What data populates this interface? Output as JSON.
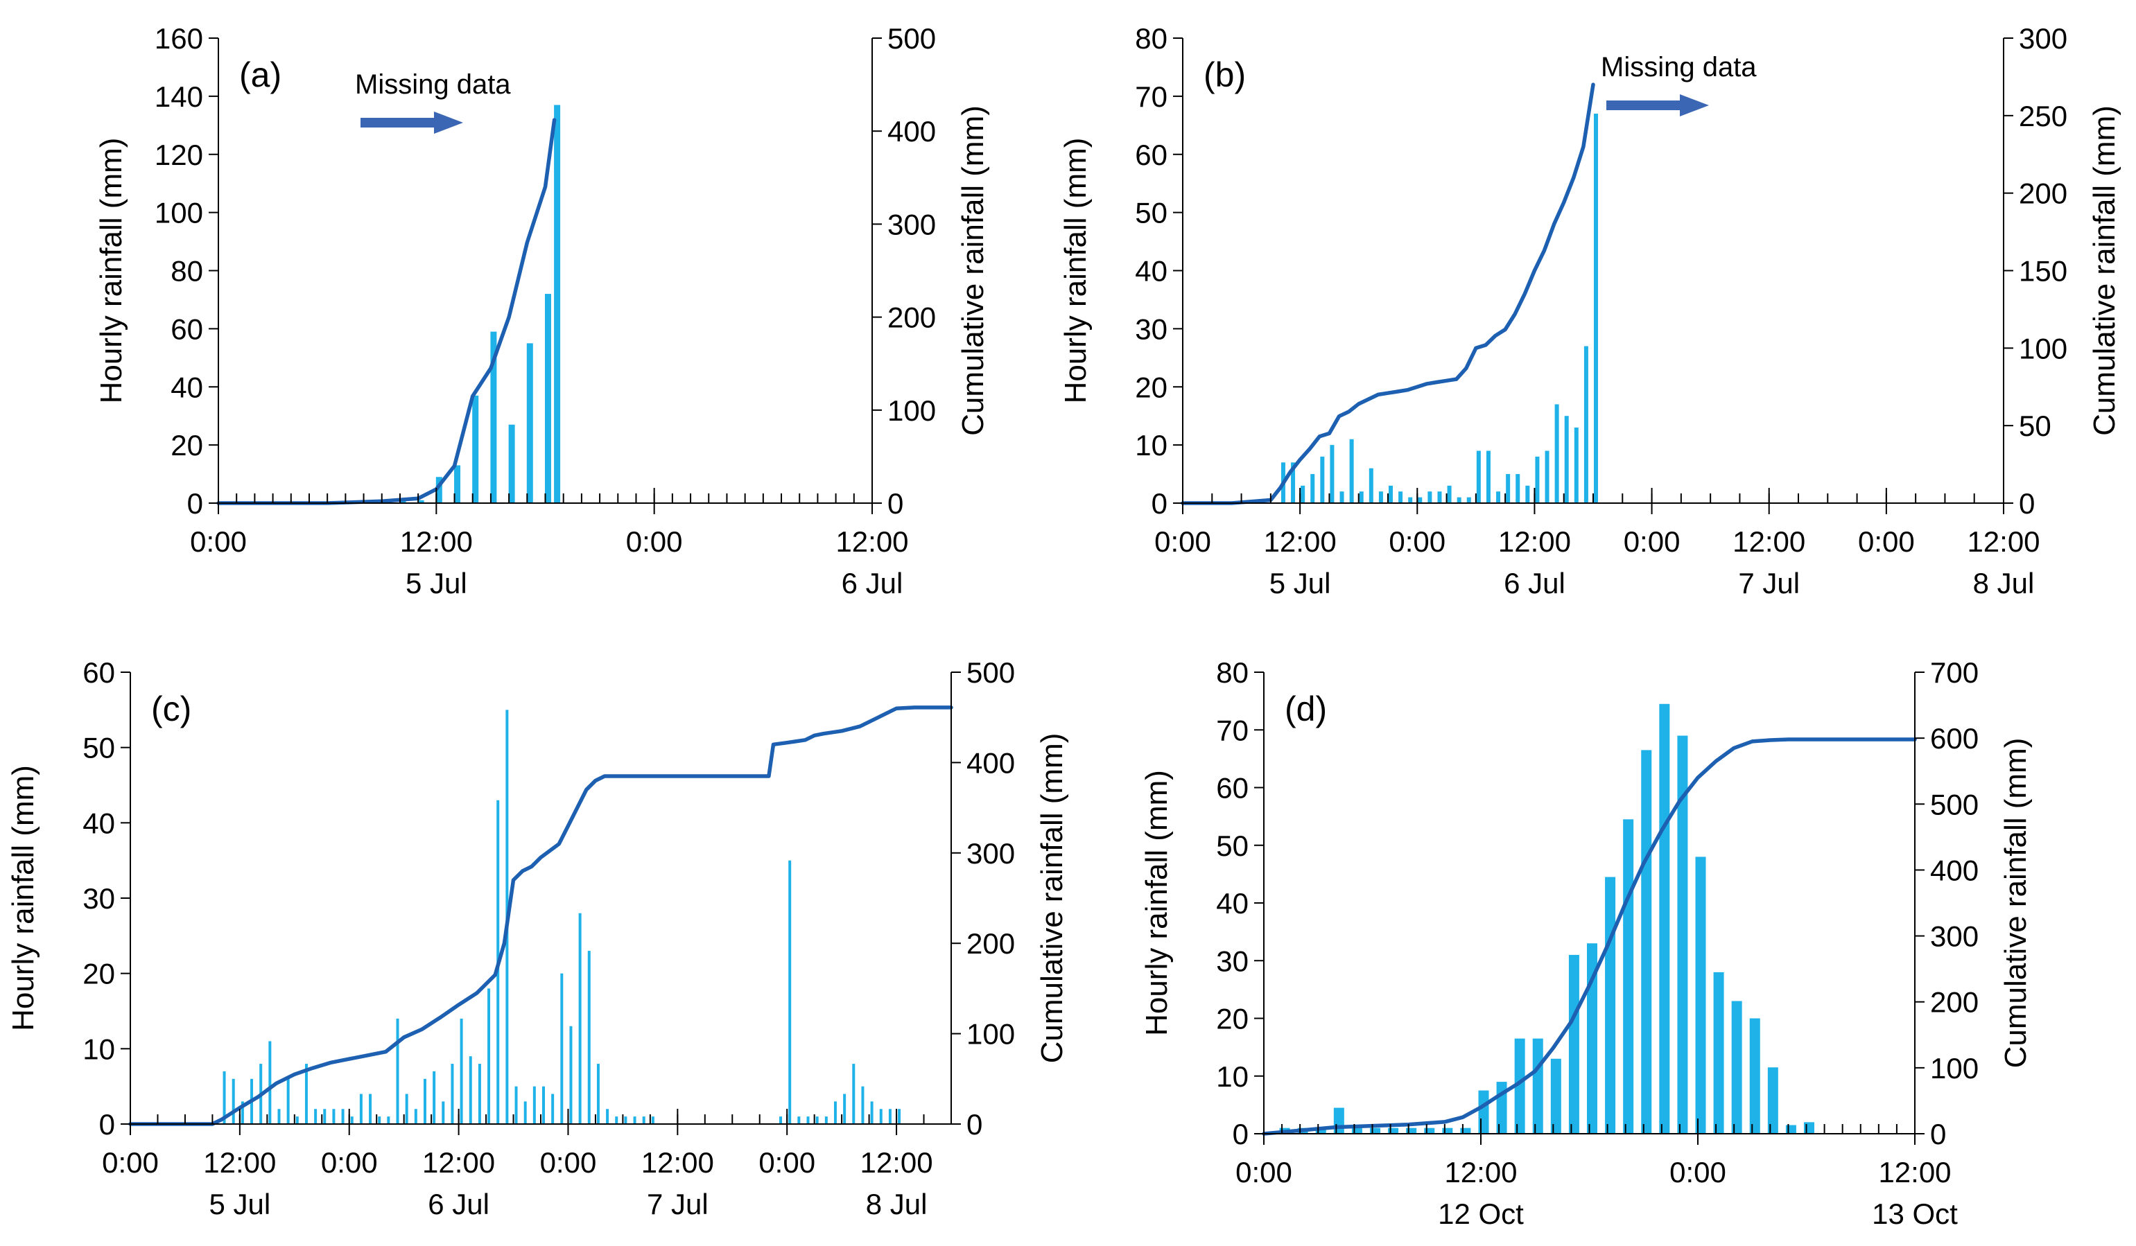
{
  "colors": {
    "bar": "#1FB2E8",
    "line": "#1D5FB0",
    "arrow": "#3B66B4",
    "axis": "#000000"
  },
  "chart_data": [
    {
      "id": "a",
      "panel_label": "(a)",
      "type": "bar+line",
      "ylabel": "Hourly rainfall (mm)",
      "y2label": "Cumulative rainfall (mm)",
      "xlim": [
        0,
        36
      ],
      "ylim": [
        0,
        160
      ],
      "y2lim": [
        0,
        500
      ],
      "yticks": [
        0,
        20,
        40,
        60,
        80,
        100,
        120,
        140,
        160
      ],
      "y2ticks": [
        0,
        100,
        200,
        300,
        400,
        500
      ],
      "xticks": [
        {
          "x": 0,
          "label": "0:00",
          "date": ""
        },
        {
          "x": 12,
          "label": "12:00",
          "date": "5 Jul"
        },
        {
          "x": 24,
          "label": "0:00",
          "date": ""
        },
        {
          "x": 36,
          "label": "12:00",
          "date": "6 Jul"
        }
      ],
      "annotation": "Missing data",
      "bars_x": [
        0,
        1,
        2,
        3,
        4,
        5,
        6,
        7,
        8,
        9,
        10,
        11,
        12,
        13,
        14,
        15,
        16,
        17,
        18
      ],
      "bars_y": [
        0.5,
        0.5,
        0.5,
        0.5,
        0.5,
        0.5,
        0.5,
        0.5,
        0.5,
        0.5,
        1,
        1,
        9,
        13,
        37,
        59,
        27,
        55,
        72
      ],
      "bars_x2": [
        18.5
      ],
      "bars_y2": [
        137
      ],
      "cum_x": [
        0,
        6,
        9,
        11,
        12,
        13,
        14,
        15,
        16,
        17,
        18,
        18.5
      ],
      "cum_y": [
        0,
        0,
        2,
        5,
        15,
        40,
        115,
        145,
        200,
        280,
        340,
        412
      ]
    },
    {
      "id": "b",
      "panel_label": "(b)",
      "type": "bar+line",
      "ylabel": "Hourly rainfall (mm)",
      "y2label": "Cumulative rainfall (mm)",
      "xlim": [
        0,
        84
      ],
      "ylim": [
        0,
        80
      ],
      "y2lim": [
        0,
        300
      ],
      "yticks": [
        0,
        10,
        20,
        30,
        40,
        50,
        60,
        70,
        80
      ],
      "y2ticks": [
        0,
        50,
        100,
        150,
        200,
        250,
        300
      ],
      "xticks": [
        {
          "x": 0,
          "label": "0:00",
          "date": ""
        },
        {
          "x": 12,
          "label": "12:00",
          "date": "5 Jul"
        },
        {
          "x": 24,
          "label": "0:00",
          "date": ""
        },
        {
          "x": 36,
          "label": "12:00",
          "date": "6 Jul"
        },
        {
          "x": 48,
          "label": "0:00",
          "date": ""
        },
        {
          "x": 60,
          "label": "12:00",
          "date": "7 Jul"
        },
        {
          "x": 72,
          "label": "0:00",
          "date": ""
        },
        {
          "x": 84,
          "label": "12:00",
          "date": "8 Jul"
        }
      ],
      "annotation": "Missing data",
      "bars_x": [
        10,
        11,
        12,
        13,
        14,
        15,
        16,
        17,
        18,
        19,
        20,
        21,
        22,
        23,
        24,
        25,
        26,
        27,
        28,
        29,
        30,
        31,
        32,
        33,
        34,
        35,
        36,
        37,
        38,
        39,
        40,
        41,
        42
      ],
      "bars_y": [
        7,
        7,
        3,
        5,
        8,
        10,
        2,
        11,
        2,
        6,
        2,
        3,
        2,
        1,
        1,
        2,
        2,
        3,
        1,
        1,
        9,
        9,
        2,
        5,
        5,
        3,
        8,
        9,
        17,
        15,
        13,
        27,
        67
      ],
      "cum_x": [
        0,
        5,
        9,
        10,
        11,
        12,
        13,
        14,
        15,
        16,
        17,
        18,
        19,
        20,
        21,
        22,
        23,
        24,
        25,
        26,
        27,
        28,
        29,
        30,
        31,
        32,
        33,
        34,
        35,
        36,
        37,
        38,
        39,
        40,
        41,
        42
      ],
      "cum_y": [
        0,
        0,
        2,
        10,
        20,
        28,
        35,
        43,
        45,
        56,
        59,
        64,
        67,
        70,
        71,
        72,
        73,
        75,
        77,
        78,
        79,
        80,
        87,
        100,
        102,
        108,
        112,
        122,
        135,
        150,
        163,
        180,
        194,
        210,
        230,
        270
      ]
    },
    {
      "id": "c",
      "panel_label": "(c)",
      "type": "bar+line",
      "ylabel": "Hourly rainfall (mm)",
      "y2label": "Cumulative rainfall (mm)",
      "xlim": [
        0,
        90
      ],
      "ylim": [
        0,
        60
      ],
      "y2lim": [
        0,
        500
      ],
      "yticks": [
        0,
        10,
        20,
        30,
        40,
        50,
        60
      ],
      "y2ticks": [
        0,
        100,
        200,
        300,
        400,
        500
      ],
      "xticks": [
        {
          "x": 0,
          "label": "0:00",
          "date": ""
        },
        {
          "x": 12,
          "label": "12:00",
          "date": "5 Jul"
        },
        {
          "x": 24,
          "label": "0:00",
          "date": ""
        },
        {
          "x": 36,
          "label": "12:00",
          "date": "6 Jul"
        },
        {
          "x": 48,
          "label": "0:00",
          "date": ""
        },
        {
          "x": 60,
          "label": "12:00",
          "date": "7 Jul"
        },
        {
          "x": 72,
          "label": "0:00",
          "date": ""
        },
        {
          "x": 84,
          "label": "12:00",
          "date": "8 Jul"
        }
      ],
      "annotation": "",
      "bars_x": [
        10,
        11,
        12,
        13,
        14,
        15,
        16,
        17,
        18,
        19,
        20,
        21,
        22,
        23,
        24,
        25,
        26,
        27,
        28,
        29,
        30,
        31,
        32,
        33,
        34,
        35,
        36,
        37,
        38,
        39,
        40,
        41,
        42,
        43,
        44,
        45,
        46,
        47,
        48,
        49,
        50,
        51,
        52,
        53,
        54,
        55,
        56,
        57,
        71,
        72,
        73,
        74,
        75,
        76,
        77,
        78,
        79,
        80,
        81,
        82,
        83,
        84
      ],
      "bars_y": [
        7,
        6,
        3,
        6,
        8,
        11,
        2,
        6,
        1,
        8,
        2,
        2,
        2,
        2,
        1,
        4,
        4,
        1,
        1,
        14,
        4,
        2,
        6,
        7,
        3,
        8,
        14,
        9,
        8,
        18,
        43,
        55,
        5,
        3,
        5,
        5,
        4,
        20,
        13,
        28,
        23,
        8,
        2,
        1,
        1,
        1,
        1,
        1,
        1,
        35,
        1,
        1,
        1,
        1,
        3,
        4,
        8,
        5,
        3,
        2,
        2,
        2
      ],
      "cum_x": [
        0,
        9,
        10,
        12,
        14,
        16,
        18,
        20,
        22,
        24,
        26,
        28,
        30,
        32,
        34,
        36,
        38,
        40,
        41,
        42,
        43,
        44,
        45,
        47,
        48,
        50,
        51,
        52,
        53,
        54,
        55,
        56,
        58,
        62,
        65,
        70,
        70.5,
        72,
        74,
        75,
        76,
        78,
        80,
        82,
        84,
        86,
        88,
        90
      ],
      "cum_y": [
        0,
        0,
        5,
        18,
        30,
        45,
        55,
        62,
        68,
        72,
        76,
        80,
        96,
        105,
        118,
        132,
        145,
        165,
        200,
        270,
        280,
        285,
        295,
        310,
        330,
        370,
        380,
        385,
        385,
        385,
        385,
        385,
        385,
        385,
        385,
        385,
        420,
        422,
        425,
        430,
        432,
        435,
        440,
        450,
        460,
        461,
        461,
        461
      ]
    },
    {
      "id": "d",
      "panel_label": "(d)",
      "type": "bar+line",
      "ylabel": "Hourly rainfall (mm)",
      "y2label": "Cumulative rainfall (mm)",
      "xlim": [
        0,
        36
      ],
      "ylim": [
        0,
        80
      ],
      "y2lim": [
        0,
        700
      ],
      "yticks": [
        0,
        10,
        20,
        30,
        40,
        50,
        60,
        70,
        80
      ],
      "y2ticks": [
        0,
        100,
        200,
        300,
        400,
        500,
        600,
        700
      ],
      "xticks": [
        {
          "x": 0,
          "label": "0:00",
          "date": ""
        },
        {
          "x": 12,
          "label": "12:00",
          "date": "12 Oct"
        },
        {
          "x": 24,
          "label": "0:00",
          "date": ""
        },
        {
          "x": 36,
          "label": "12:00",
          "date": "13 Oct"
        }
      ],
      "annotation": "",
      "bars_x": [
        1,
        2,
        3,
        4,
        5,
        6,
        7,
        8,
        9,
        10,
        11,
        12,
        13,
        14,
        15,
        16,
        17,
        18,
        19,
        20,
        21,
        22,
        23,
        24,
        25,
        26,
        27,
        28,
        29,
        30
      ],
      "bars_y": [
        1,
        1,
        1,
        4.5,
        1,
        1,
        1,
        1,
        1,
        1,
        1,
        7.5,
        9,
        16.5,
        16.5,
        13,
        31,
        33,
        44.5,
        54.5,
        66.5,
        74.5,
        69,
        48,
        28,
        23,
        20,
        11.5,
        1.5,
        2
      ],
      "cum_x": [
        0,
        2,
        4,
        6,
        8,
        10,
        11,
        12,
        13,
        14,
        15,
        16,
        17,
        18,
        19,
        20,
        21,
        22,
        23,
        24,
        25,
        26,
        27,
        28,
        29,
        30,
        32,
        34,
        36
      ],
      "cum_y": [
        0,
        5,
        10,
        12,
        14,
        18,
        25,
        40,
        58,
        75,
        95,
        130,
        170,
        225,
        285,
        350,
        410,
        460,
        505,
        540,
        565,
        585,
        595,
        597,
        598,
        598,
        598,
        598,
        598
      ]
    }
  ]
}
